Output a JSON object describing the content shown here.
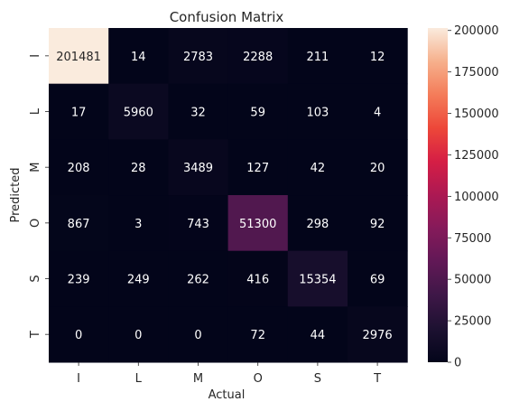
{
  "chart_data": {
    "type": "heatmap",
    "title": "Confusion Matrix",
    "xlabel": "Actual",
    "ylabel": "Predicted",
    "x_categories": [
      "I",
      "L",
      "M",
      "O",
      "S",
      "T"
    ],
    "y_categories": [
      "I",
      "L",
      "M",
      "O",
      "S",
      "T"
    ],
    "values": [
      [
        201481,
        14,
        2783,
        2288,
        211,
        12
      ],
      [
        17,
        5960,
        32,
        59,
        103,
        4
      ],
      [
        208,
        28,
        3489,
        127,
        42,
        20
      ],
      [
        867,
        3,
        743,
        51300,
        298,
        92
      ],
      [
        239,
        249,
        262,
        416,
        15354,
        69
      ],
      [
        0,
        0,
        0,
        72,
        44,
        2976
      ]
    ],
    "colorbar": {
      "min": 0,
      "max": 201481,
      "ticks": [
        0,
        25000,
        50000,
        75000,
        100000,
        125000,
        150000,
        175000,
        200000
      ]
    },
    "colormap": "rocket"
  }
}
